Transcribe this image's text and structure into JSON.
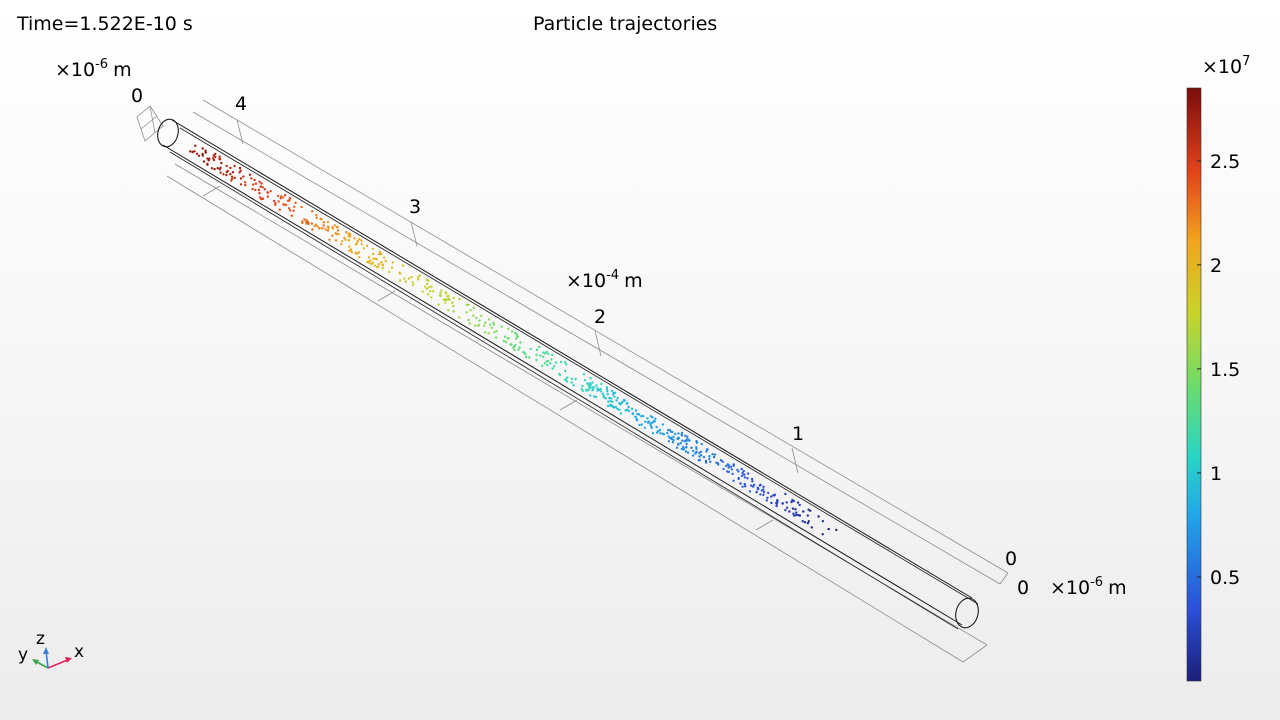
{
  "header": {
    "time_label": "Time=1.522E-10 s",
    "title": "Particle trajectories"
  },
  "axes": {
    "top_left_scale": {
      "base": "×10",
      "exp": "-6",
      "unit": "m"
    },
    "top_left_zero": "0",
    "middle_scale": {
      "base": "×10",
      "exp": "-4",
      "unit": "m"
    },
    "right_scale": {
      "base": "×10",
      "exp": "-6",
      "unit": "m"
    },
    "right_zero_a": "0",
    "right_zero_b": "0",
    "long_axis_ticks": [
      "4",
      "3",
      "2",
      "1"
    ]
  },
  "colorbar": {
    "exponent_base": "×10",
    "exponent": "7",
    "ticks": [
      "2.5",
      "2",
      "1.5",
      "1",
      "0.5"
    ],
    "tick_values": [
      2.5,
      2.0,
      1.5,
      1.0,
      0.5
    ],
    "min": 0,
    "max": 2.85,
    "colormap": "rainbow (dark blue to dark red)"
  },
  "triad": {
    "x": "x",
    "y": "y",
    "z": "z"
  },
  "chart_data": {
    "type": "scatter",
    "title": "Particle trajectories",
    "xlabel": "",
    "ylabel": "",
    "color_range": [
      0,
      2.85
    ],
    "color_exponent": 7,
    "axis_ticks": [
      "0",
      "1",
      "2",
      "3",
      "4"
    ],
    "particle_count": 620,
    "note_series": "particles colored by speed, decreasing from 2.85e7 at the left end (x≈4.6e-4 m) to ~0 at the right end"
  },
  "colors": {
    "tube": "#1a1a1a",
    "grid": "#8c8c8c",
    "triad_x": "#e0245e",
    "triad_y": "#3aa84a",
    "triad_z": "#3a7fd0"
  }
}
